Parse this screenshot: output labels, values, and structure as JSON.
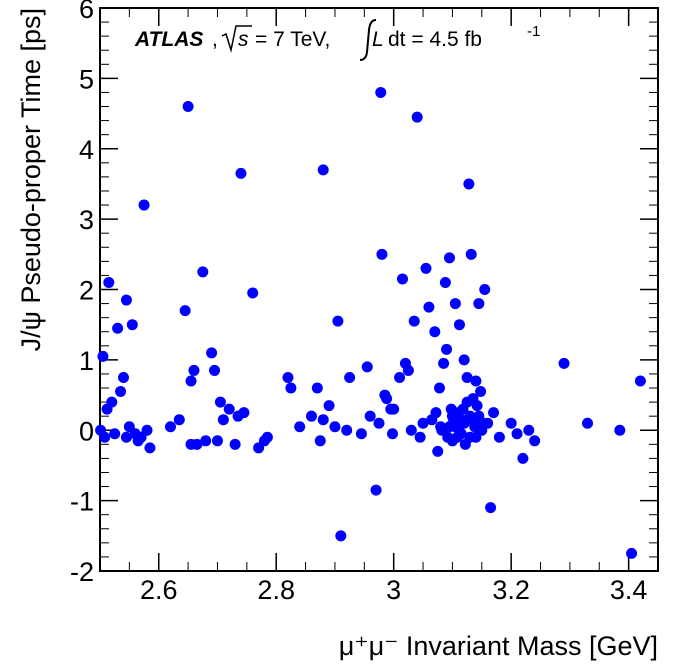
{
  "chart_data": {
    "type": "scatter",
    "title": "",
    "xlabel": "μ⁺μ⁻ Invariant Mass [GeV]",
    "ylabel": "J/ψ Pseudo-proper Time [ps]",
    "xlim": [
      2.5,
      3.45
    ],
    "ylim": [
      -2,
      6
    ],
    "x_ticks": [
      2.6,
      2.8,
      3,
      3.2,
      3.4
    ],
    "x_tick_labels": [
      "2.6",
      "2.8",
      "3",
      "3.2",
      "3.4"
    ],
    "y_ticks": [
      -2,
      -1,
      0,
      1,
      2,
      3,
      4,
      5,
      6
    ],
    "y_tick_labels": [
      "-2",
      "-1",
      "0",
      "1",
      "2",
      "3",
      "4",
      "5",
      "6"
    ],
    "grid": false,
    "marker_color": "#0000ff",
    "annotation": {
      "experiment": "ATLAS",
      "energy": "= 7 TeV,",
      "lumi": "dt = 4.5 fb",
      "lumi_exp": "-1"
    },
    "x": [
      2.501,
      2.505,
      2.508,
      2.512,
      2.515,
      2.52,
      2.525,
      2.53,
      2.535,
      2.54,
      2.545,
      2.545,
      2.55,
      2.555,
      2.56,
      2.565,
      2.57,
      2.575,
      2.585,
      2.58,
      2.62,
      2.635,
      2.645,
      2.65,
      2.655,
      2.655,
      2.66,
      2.665,
      2.675,
      2.68,
      2.69,
      2.695,
      2.7,
      2.705,
      2.71,
      2.72,
      2.73,
      2.735,
      2.74,
      2.745,
      2.76,
      2.77,
      2.78,
      2.785,
      2.82,
      2.825,
      2.84,
      2.86,
      2.87,
      2.875,
      2.88,
      2.88,
      2.89,
      2.9,
      2.905,
      2.92,
      2.925,
      2.945,
      2.955,
      2.975,
      2.978,
      2.98,
      2.985,
      2.988,
      2.995,
      2.998,
      3.0,
      3.01,
      3.015,
      3.02,
      3.025,
      3.03,
      3.035,
      3.04,
      3.045,
      3.05,
      3.055,
      3.06,
      3.065,
      3.07,
      3.072,
      3.075,
      3.078,
      3.08,
      3.082,
      3.085,
      3.088,
      3.09,
      3.092,
      3.095,
      3.095,
      3.098,
      3.1,
      3.1,
      3.102,
      3.105,
      3.105,
      3.108,
      3.11,
      3.11,
      3.112,
      3.115,
      3.115,
      3.118,
      3.12,
      3.12,
      3.122,
      3.125,
      3.125,
      3.128,
      3.13,
      3.13,
      3.132,
      3.135,
      3.135,
      3.138,
      3.14,
      3.14,
      3.142,
      3.145,
      3.145,
      3.148,
      3.15,
      3.152,
      3.155,
      3.16,
      3.165,
      3.17,
      3.18,
      3.2,
      3.21,
      3.22,
      3.23,
      3.24,
      3.29,
      3.33,
      3.385,
      3.405,
      3.42,
      2.97,
      2.96,
      2.91
    ],
    "y": [
      0.0,
      1.05,
      -0.1,
      0.3,
      2.1,
      0.4,
      -0.05,
      1.45,
      0.55,
      0.75,
      1.85,
      -0.1,
      0.05,
      1.5,
      -0.05,
      -0.15,
      -0.1,
      3.2,
      -0.25,
      0.0,
      0.05,
      0.15,
      1.7,
      4.6,
      0.7,
      -0.2,
      0.85,
      -0.2,
      2.25,
      -0.15,
      1.1,
      0.85,
      -0.15,
      0.4,
      0.15,
      0.3,
      -0.2,
      0.2,
      3.65,
      0.25,
      1.95,
      -0.25,
      -0.15,
      -0.1,
      0.75,
      0.6,
      0.05,
      0.2,
      0.6,
      -0.15,
      3.7,
      0.15,
      0.35,
      0.05,
      1.55,
      0.0,
      0.75,
      -0.05,
      0.9,
      0.1,
      4.8,
      2.5,
      0.5,
      0.45,
      0.3,
      -0.05,
      0.3,
      0.75,
      2.15,
      0.95,
      0.85,
      0.0,
      1.55,
      4.45,
      -0.1,
      0.1,
      2.3,
      1.75,
      0.15,
      1.4,
      0.25,
      -0.3,
      0.6,
      0.05,
      0.0,
      0.95,
      2.1,
      1.15,
      -0.1,
      0.05,
      2.45,
      0.3,
      0.2,
      -0.15,
      0.15,
      1.8,
      0.05,
      -0.1,
      0.25,
      0.05,
      1.5,
      0.15,
      -0.05,
      0.3,
      0.1,
      1.0,
      -0.2,
      0.75,
      0.4,
      3.5,
      0.2,
      -0.1,
      2.5,
      0.45,
      0.15,
      0.05,
      0.7,
      -0.1,
      0.35,
      1.8,
      0.2,
      0.55,
      0.0,
      0.1,
      2.0,
      0.1,
      -1.1,
      0.25,
      -0.1,
      0.1,
      -0.05,
      -0.4,
      0.0,
      -0.15,
      0.95,
      0.1,
      0.0,
      -1.75,
      0.7,
      -0.85,
      0.2,
      -1.5
    ]
  }
}
